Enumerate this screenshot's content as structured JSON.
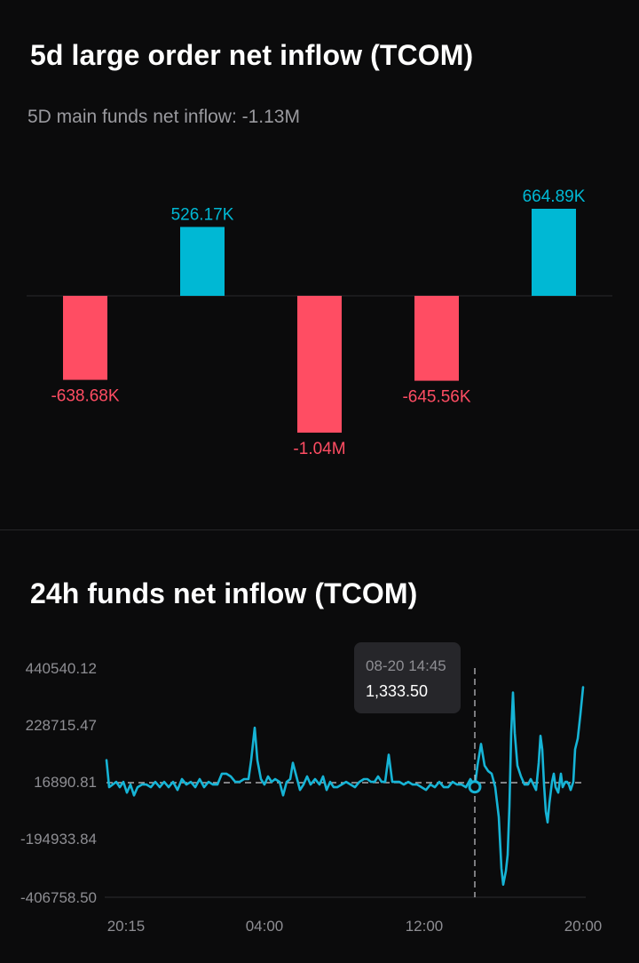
{
  "section1": {
    "title": "5d large order net inflow (TCOM)",
    "subtitle": "5D main funds net inflow: -1.13M"
  },
  "section2": {
    "title": "24h funds net inflow (TCOM)"
  },
  "colors": {
    "positive": "#00b8d4",
    "negative": "#ff4d63",
    "line": "#16b4d6",
    "background": "#0b0b0c"
  },
  "chart_data": [
    {
      "type": "bar",
      "title": "5d large order net inflow (TCOM)",
      "subtitle": "5D main funds net inflow: -1.13M",
      "values": [
        -638680,
        526170,
        -1040000,
        -645560,
        664890
      ],
      "data_labels": [
        "-638.68K",
        "526.17K",
        "-1.04M",
        "-645.56K",
        "664.89K"
      ],
      "ylim": [
        -1040000,
        664890
      ]
    },
    {
      "type": "line",
      "title": "24h funds net inflow (TCOM)",
      "x_ticks": [
        "20:15",
        "04:00",
        "12:00",
        "20:00"
      ],
      "y_ticks": [
        "440540.12",
        "228715.47",
        "16890.81",
        "-194933.84",
        "-406758.50"
      ],
      "ylim": [
        -406758.5,
        440540.12
      ],
      "reference_value": 16890.81,
      "series": [
        {
          "points": [
            [
              0,
              100000
            ],
            [
              3,
              0
            ],
            [
              7,
              10000
            ],
            [
              11,
              20000
            ],
            [
              15,
              0
            ],
            [
              19,
              20000
            ],
            [
              23,
              -20000
            ],
            [
              27,
              10000
            ],
            [
              31,
              -30000
            ],
            [
              35,
              0
            ],
            [
              40,
              10000
            ],
            [
              45,
              10000
            ],
            [
              50,
              0
            ],
            [
              55,
              20000
            ],
            [
              60,
              0
            ],
            [
              65,
              20000
            ],
            [
              70,
              0
            ],
            [
              75,
              20000
            ],
            [
              80,
              -10000
            ],
            [
              85,
              30000
            ],
            [
              90,
              10000
            ],
            [
              95,
              20000
            ],
            [
              100,
              0
            ],
            [
              105,
              30000
            ],
            [
              110,
              0
            ],
            [
              115,
              20000
            ],
            [
              120,
              10000
            ],
            [
              125,
              10000
            ],
            [
              130,
              50000
            ],
            [
              135,
              50000
            ],
            [
              140,
              40000
            ],
            [
              145,
              20000
            ],
            [
              150,
              20000
            ],
            [
              155,
              30000
            ],
            [
              160,
              30000
            ],
            [
              163,
              100000
            ],
            [
              167,
              220000
            ],
            [
              170,
              100000
            ],
            [
              174,
              30000
            ],
            [
              178,
              10000
            ],
            [
              182,
              40000
            ],
            [
              186,
              20000
            ],
            [
              190,
              30000
            ],
            [
              195,
              20000
            ],
            [
              199,
              -30000
            ],
            [
              203,
              20000
            ],
            [
              207,
              30000
            ],
            [
              210,
              90000
            ],
            [
              214,
              40000
            ],
            [
              218,
              -10000
            ],
            [
              222,
              10000
            ],
            [
              226,
              40000
            ],
            [
              230,
              10000
            ],
            [
              235,
              30000
            ],
            [
              240,
              10000
            ],
            [
              244,
              40000
            ],
            [
              248,
              -10000
            ],
            [
              252,
              20000
            ],
            [
              256,
              0
            ],
            [
              260,
              0
            ],
            [
              265,
              10000
            ],
            [
              270,
              20000
            ],
            [
              275,
              10000
            ],
            [
              280,
              0
            ],
            [
              285,
              20000
            ],
            [
              290,
              30000
            ],
            [
              294,
              30000
            ],
            [
              298,
              20000
            ],
            [
              302,
              20000
            ],
            [
              306,
              40000
            ],
            [
              310,
              20000
            ],
            [
              314,
              20000
            ],
            [
              318,
              120000
            ],
            [
              322,
              20000
            ],
            [
              326,
              20000
            ],
            [
              330,
              20000
            ],
            [
              335,
              10000
            ],
            [
              340,
              20000
            ],
            [
              345,
              10000
            ],
            [
              350,
              10000
            ],
            [
              355,
              0
            ],
            [
              360,
              -10000
            ],
            [
              365,
              10000
            ],
            [
              370,
              0
            ],
            [
              375,
              20000
            ],
            [
              380,
              0
            ],
            [
              385,
              0
            ],
            [
              390,
              20000
            ],
            [
              395,
              10000
            ],
            [
              400,
              10000
            ],
            [
              405,
              0
            ],
            [
              410,
              30000
            ],
            [
              415,
              1333.5
            ],
            [
              418,
              80000
            ],
            [
              422,
              160000
            ],
            [
              426,
              80000
            ],
            [
              430,
              60000
            ],
            [
              434,
              50000
            ],
            [
              438,
              0
            ],
            [
              442,
              -110000
            ],
            [
              445,
              -300000
            ],
            [
              447,
              -360000
            ],
            [
              450,
              -310000
            ],
            [
              452,
              -250000
            ],
            [
              454,
              -70000
            ],
            [
              456,
              200000
            ],
            [
              458,
              350000
            ],
            [
              460,
              200000
            ],
            [
              463,
              80000
            ],
            [
              467,
              40000
            ],
            [
              471,
              10000
            ],
            [
              475,
              10000
            ],
            [
              478,
              30000
            ],
            [
              481,
              10000
            ],
            [
              484,
              -10000
            ],
            [
              487,
              90000
            ],
            [
              489,
              190000
            ],
            [
              491,
              140000
            ],
            [
              493,
              10000
            ],
            [
              495,
              -90000
            ],
            [
              497,
              -130000
            ],
            [
              499,
              -60000
            ],
            [
              502,
              20000
            ],
            [
              504,
              50000
            ],
            [
              506,
              0
            ],
            [
              509,
              -20000
            ],
            [
              512,
              50000
            ],
            [
              514,
              0
            ],
            [
              517,
              20000
            ],
            [
              519,
              20000
            ],
            [
              521,
              10000
            ],
            [
              523,
              -10000
            ],
            [
              526,
              20000
            ],
            [
              528,
              140000
            ],
            [
              531,
              180000
            ],
            [
              534,
              270000
            ],
            [
              537,
              370000
            ]
          ]
        }
      ],
      "highlight": {
        "label": "08-20 14:45",
        "value": "1,333.50",
        "x": 415
      }
    }
  ]
}
